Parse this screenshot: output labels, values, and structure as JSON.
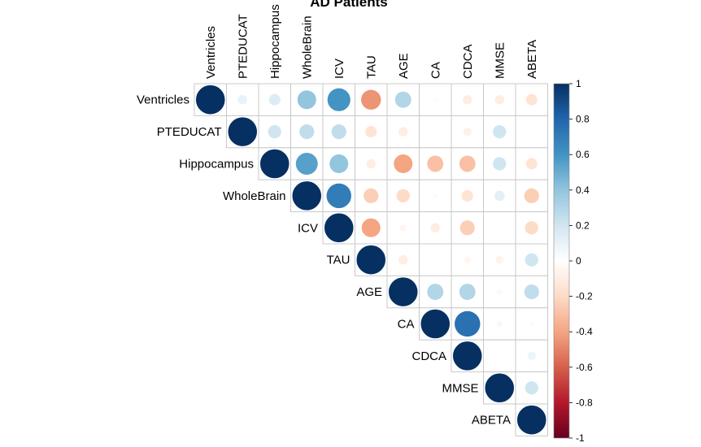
{
  "chart_data": {
    "type": "heatmap",
    "title": "AD Patients",
    "variables": [
      "Ventricles",
      "PTEDUCAT",
      "Hippocampus",
      "WholeBrain",
      "ICV",
      "TAU",
      "AGE",
      "CA",
      "CDCA",
      "MMSE",
      "ABETA"
    ],
    "matrix": [
      [
        1.0,
        0.1,
        0.15,
        0.4,
        0.6,
        -0.45,
        0.3,
        -0.02,
        -0.1,
        -0.1,
        -0.15
      ],
      [
        0.1,
        1.0,
        0.2,
        0.25,
        0.25,
        -0.15,
        -0.1,
        0.0,
        -0.08,
        0.2,
        0.0
      ],
      [
        0.15,
        0.2,
        1.0,
        0.55,
        0.4,
        -0.1,
        -0.4,
        -0.3,
        -0.3,
        0.2,
        -0.15
      ],
      [
        0.4,
        0.25,
        0.55,
        1.0,
        0.7,
        -0.25,
        -0.2,
        -0.03,
        -0.15,
        0.12,
        -0.25
      ],
      [
        0.6,
        0.25,
        0.4,
        0.7,
        1.0,
        -0.4,
        -0.05,
        -0.1,
        -0.25,
        0.0,
        -0.2
      ],
      [
        -0.45,
        -0.15,
        -0.1,
        -0.25,
        -0.4,
        1.0,
        -0.1,
        0.0,
        -0.05,
        -0.07,
        0.2
      ],
      [
        0.3,
        -0.1,
        -0.4,
        -0.2,
        -0.05,
        -0.1,
        1.0,
        0.3,
        0.3,
        -0.04,
        0.25
      ],
      [
        -0.02,
        0.0,
        -0.3,
        -0.03,
        -0.1,
        0.0,
        0.3,
        1.0,
        0.75,
        0.04,
        -0.02
      ],
      [
        -0.1,
        -0.08,
        -0.3,
        -0.15,
        -0.25,
        -0.05,
        0.3,
        0.75,
        1.0,
        0.0,
        0.08
      ],
      [
        -0.1,
        0.2,
        0.2,
        0.12,
        0.0,
        -0.07,
        -0.04,
        0.04,
        0.0,
        1.0,
        0.2
      ],
      [
        -0.15,
        0.0,
        -0.15,
        -0.25,
        -0.2,
        0.2,
        0.25,
        -0.02,
        0.08,
        0.2,
        1.0
      ]
    ],
    "display": "upper-triangle",
    "glyph": "circle",
    "colorbar": {
      "min": -1,
      "max": 1,
      "ticks": [
        "1",
        "0.8",
        "0.6",
        "0.4",
        "0.2",
        "0",
        "-0.2",
        "-0.4",
        "-0.6",
        "-0.8",
        "-1"
      ],
      "colors": {
        "negative": "#67001F",
        "neutral": "#FFFFFF",
        "positive": "#053061"
      }
    },
    "grid": true,
    "legend_position": "right"
  }
}
